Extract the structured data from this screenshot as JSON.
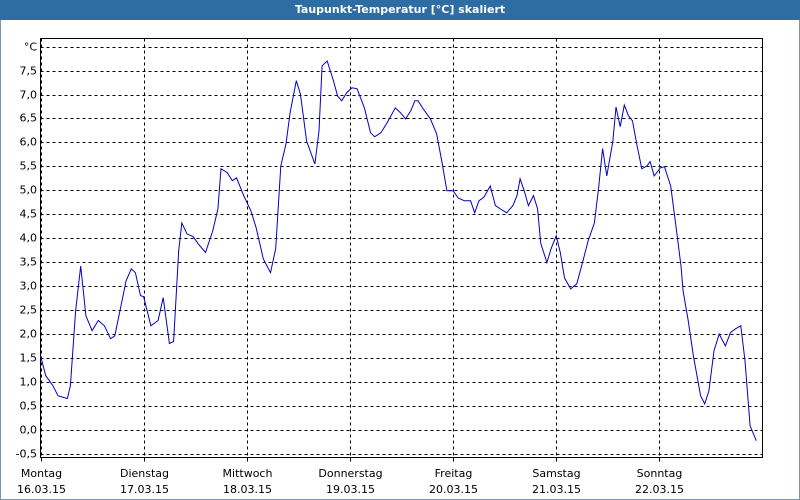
{
  "chart_data": {
    "type": "line",
    "title": "Taupunkt-Temperatur [°C] skaliert",
    "color": "#0000c8",
    "grid": true,
    "xlim": [
      0,
      7
    ],
    "ylim": [
      -0.58,
      8.17
    ],
    "xticks": [
      {
        "value": 0,
        "label": "Montag",
        "date": "16.03.15"
      },
      {
        "value": 1,
        "label": "Dienstag",
        "date": "17.03.15"
      },
      {
        "value": 2,
        "label": "Mittwoch",
        "date": "18.03.15"
      },
      {
        "value": 3,
        "label": "Donnerstag",
        "date": "19.03.15"
      },
      {
        "value": 4,
        "label": "Freitag",
        "date": "20.03.15"
      },
      {
        "value": 5,
        "label": "Samstag",
        "date": "21.03.15"
      },
      {
        "value": 6,
        "label": "Sonntag",
        "date": "22.03.15"
      }
    ],
    "yticks": [
      {
        "value": -0.5,
        "label": "-0,5"
      },
      {
        "value": 0,
        "label": "0,0"
      },
      {
        "value": 0.5,
        "label": "0,5"
      },
      {
        "value": 1,
        "label": "1,0"
      },
      {
        "value": 1.5,
        "label": "1,5"
      },
      {
        "value": 2,
        "label": "2,0"
      },
      {
        "value": 2.5,
        "label": "2,5"
      },
      {
        "value": 3,
        "label": "3,0"
      },
      {
        "value": 3.5,
        "label": "3,5"
      },
      {
        "value": 4,
        "label": "4,0"
      },
      {
        "value": 4.5,
        "label": "4,5"
      },
      {
        "value": 5,
        "label": "5,0"
      },
      {
        "value": 5.5,
        "label": "5,5"
      },
      {
        "value": 6,
        "label": "6,0"
      },
      {
        "value": 6.5,
        "label": "6,5"
      },
      {
        "value": 7,
        "label": "7,0"
      },
      {
        "value": 7.5,
        "label": "7,5"
      },
      {
        "value": 8,
        "label": "°C"
      }
    ],
    "x": [
      0,
      0.05,
      0.12,
      0.17,
      0.26,
      0.29,
      0.34,
      0.39,
      0.44,
      0.5,
      0.56,
      0.62,
      0.68,
      0.72,
      0.78,
      0.83,
      0.88,
      0.92,
      0.97,
      1.0,
      1.07,
      1.14,
      1.19,
      1.25,
      1.29,
      1.34,
      1.37,
      1.42,
      1.48,
      1.53,
      1.6,
      1.67,
      1.72,
      1.75,
      1.81,
      1.86,
      1.9,
      1.97,
      2.04,
      2.09,
      2.16,
      2.23,
      2.28,
      2.33,
      2.38,
      2.42,
      2.48,
      2.52,
      2.58,
      2.66,
      2.7,
      2.73,
      2.78,
      2.84,
      2.88,
      2.92,
      2.97,
      3.02,
      3.07,
      3.14,
      3.2,
      3.24,
      3.3,
      3.36,
      3.44,
      3.49,
      3.54,
      3.59,
      3.63,
      3.66,
      3.71,
      3.78,
      3.84,
      3.89,
      3.94,
      4.0,
      4.05,
      4.11,
      4.17,
      4.21,
      4.25,
      4.3,
      4.36,
      4.41,
      4.46,
      4.52,
      4.58,
      4.62,
      4.65,
      4.69,
      4.73,
      4.78,
      4.82,
      4.85,
      4.91,
      4.95,
      5.0,
      5.04,
      5.08,
      5.14,
      5.2,
      5.26,
      5.31,
      5.37,
      5.41,
      5.45,
      5.49,
      5.55,
      5.58,
      5.62,
      5.66,
      5.7,
      5.74,
      5.78,
      5.83,
      5.88,
      5.91,
      5.95,
      6.01,
      6.05,
      6.11,
      6.16,
      6.21,
      6.23,
      6.28,
      6.33,
      6.4,
      6.44,
      6.48,
      6.53,
      6.58,
      6.64,
      6.69,
      6.74,
      6.79,
      6.83,
      6.88,
      6.94
    ],
    "values": [
      1.55,
      1.13,
      0.92,
      0.71,
      0.65,
      0.92,
      2.48,
      3.42,
      2.38,
      2.07,
      2.28,
      2.17,
      1.9,
      1.96,
      2.59,
      3.11,
      3.36,
      3.28,
      2.8,
      2.78,
      2.17,
      2.28,
      2.76,
      1.8,
      1.84,
      3.74,
      4.32,
      4.09,
      4.03,
      3.88,
      3.7,
      4.15,
      4.61,
      5.45,
      5.37,
      5.2,
      5.26,
      4.89,
      4.57,
      4.22,
      3.57,
      3.28,
      3.78,
      5.51,
      5.97,
      6.62,
      7.29,
      7.01,
      6.03,
      5.55,
      6.24,
      7.6,
      7.7,
      7.29,
      6.97,
      6.87,
      7.04,
      7.14,
      7.12,
      6.72,
      6.2,
      6.12,
      6.2,
      6.41,
      6.72,
      6.62,
      6.49,
      6.66,
      6.87,
      6.87,
      6.7,
      6.49,
      6.18,
      5.62,
      4.99,
      4.99,
      4.84,
      4.78,
      4.78,
      4.53,
      4.78,
      4.86,
      5.09,
      4.68,
      4.61,
      4.53,
      4.68,
      4.89,
      5.24,
      4.99,
      4.68,
      4.89,
      4.61,
      3.9,
      3.49,
      3.78,
      4.05,
      3.7,
      3.17,
      2.94,
      3.05,
      3.53,
      3.95,
      4.32,
      5.03,
      5.87,
      5.3,
      6.03,
      6.74,
      6.33,
      6.78,
      6.56,
      6.45,
      5.97,
      5.45,
      5.51,
      5.6,
      5.3,
      5.47,
      5.49,
      5.09,
      4.26,
      3.42,
      2.9,
      2.28,
      1.54,
      0.71,
      0.54,
      0.81,
      1.65,
      2.0,
      1.75,
      2.03,
      2.11,
      2.17,
      1.44,
      0.08,
      -0.23
    ]
  }
}
